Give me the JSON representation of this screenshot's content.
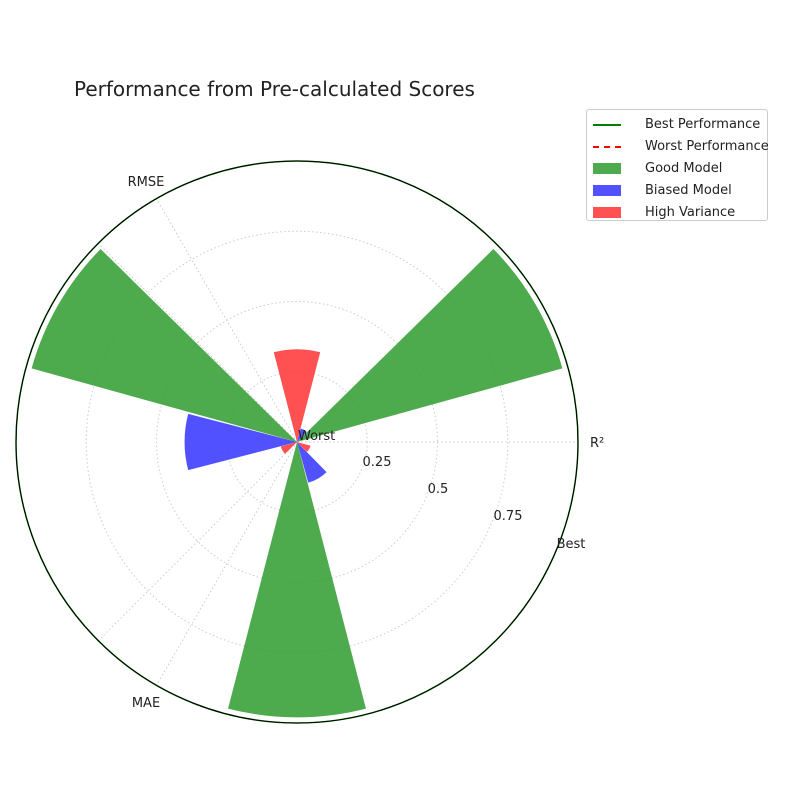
{
  "chart_data": {
    "type": "polar-bar",
    "title": "Performance from Pre-calculated Scores",
    "axes": [
      "R²",
      "RMSE",
      "MAE"
    ],
    "radial_ticks": [
      "0.25",
      "0.5",
      "0.75"
    ],
    "center_label": "Worst",
    "outer_label": "Best",
    "rlim": [
      0,
      1
    ],
    "series": [
      {
        "name": "Good Model",
        "color": "#2e9b2e",
        "values": [
          0.98,
          0.98,
          0.98
        ]
      },
      {
        "name": "Biased Model",
        "color": "#3333ff",
        "values": [
          0.05,
          0.4,
          0.15
        ]
      },
      {
        "name": "High Variance",
        "color": "#ff3333",
        "values": [
          0.33,
          0.06,
          0.05
        ]
      }
    ],
    "reference_lines": [
      {
        "name": "Best Performance",
        "color": "#008000",
        "style": "solid",
        "value": 1.0
      },
      {
        "name": "Worst Performance",
        "color": "#ff0000",
        "style": "dashed",
        "value": 0.0
      }
    ],
    "legend_position": "upper-right"
  }
}
